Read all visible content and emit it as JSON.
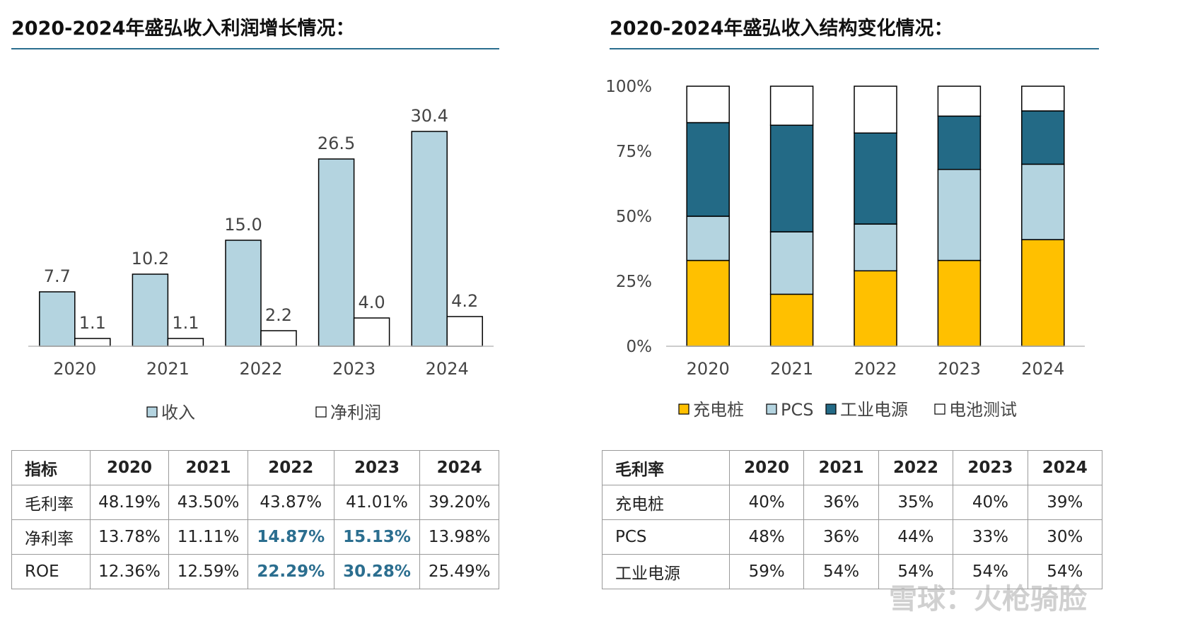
{
  "left": {
    "title": "2020-2024年盛弘收入利润增长情况：",
    "legend": [
      {
        "label": "收入",
        "color": "#b4d4e0"
      },
      {
        "label": "净利润",
        "color": "#ffffff"
      }
    ],
    "table": {
      "headers": [
        "指标",
        "2020",
        "2021",
        "2022",
        "2023",
        "2024"
      ],
      "rows": [
        {
          "cells": [
            "毛利率",
            "48.19%",
            "43.50%",
            "43.87%",
            "41.01%",
            "39.20%"
          ],
          "hl": [
            false,
            false,
            false,
            false,
            false,
            false
          ]
        },
        {
          "cells": [
            "净利率",
            "13.78%",
            "11.11%",
            "14.87%",
            "15.13%",
            "13.98%"
          ],
          "hl": [
            false,
            false,
            false,
            true,
            true,
            false
          ]
        },
        {
          "cells": [
            "ROE",
            "12.36%",
            "12.59%",
            "22.29%",
            "30.28%",
            "25.49%"
          ],
          "hl": [
            false,
            false,
            false,
            true,
            true,
            false
          ]
        }
      ]
    }
  },
  "right": {
    "title": "2020-2024年盛弘收入结构变化情况：",
    "legend": [
      {
        "label": "充电桩",
        "color": "#ffc000"
      },
      {
        "label": "PCS",
        "color": "#b4d4e0"
      },
      {
        "label": "工业电源",
        "color": "#236a86"
      },
      {
        "label": "电池测试",
        "color": "#ffffff"
      }
    ],
    "table": {
      "headers": [
        "毛利率",
        "2020",
        "2021",
        "2022",
        "2023",
        "2024"
      ],
      "rows": [
        {
          "cells": [
            "充电桩",
            "40%",
            "36%",
            "35%",
            "40%",
            "39%"
          ]
        },
        {
          "cells": [
            "PCS",
            "48%",
            "36%",
            "44%",
            "33%",
            "30%"
          ]
        },
        {
          "cells": [
            "工业电源",
            "59%",
            "54%",
            "54%",
            "54%",
            "54%"
          ]
        }
      ]
    }
  },
  "watermark": "雪球：火枪骑脸",
  "chart_data": [
    {
      "type": "bar",
      "title": "2020-2024年盛弘收入利润增长情况：",
      "categories": [
        "2020",
        "2021",
        "2022",
        "2023",
        "2024"
      ],
      "series": [
        {
          "name": "收入",
          "values": [
            7.7,
            10.2,
            15.0,
            26.5,
            30.4
          ],
          "labels": [
            "7.7",
            "10.2",
            "15.0",
            "26.5",
            "30.4"
          ]
        },
        {
          "name": "净利润",
          "values": [
            1.1,
            1.1,
            2.2,
            4.0,
            4.2
          ],
          "labels": [
            "1.1",
            "1.1",
            "2.2",
            "4.0",
            "4.2"
          ]
        }
      ],
      "ylim": [
        0,
        35
      ],
      "grid": false,
      "legend_position": "bottom"
    },
    {
      "type": "bar",
      "stacked": true,
      "title": "2020-2024年盛弘收入结构变化情况：",
      "categories": [
        "2020",
        "2021",
        "2022",
        "2023",
        "2024"
      ],
      "series": [
        {
          "name": "充电桩",
          "values": [
            0.33,
            0.2,
            0.29,
            0.33,
            0.41
          ]
        },
        {
          "name": "PCS",
          "values": [
            0.17,
            0.24,
            0.18,
            0.35,
            0.29
          ]
        },
        {
          "name": "工业电源",
          "values": [
            0.36,
            0.41,
            0.35,
            0.205,
            0.205
          ]
        },
        {
          "name": "电池测试",
          "values": [
            0.14,
            0.15,
            0.18,
            0.115,
            0.095
          ]
        }
      ],
      "y_ticks": [
        "0%",
        "25%",
        "50%",
        "75%",
        "100%"
      ],
      "ylim": [
        0,
        1
      ],
      "grid": false,
      "legend_position": "bottom"
    }
  ]
}
